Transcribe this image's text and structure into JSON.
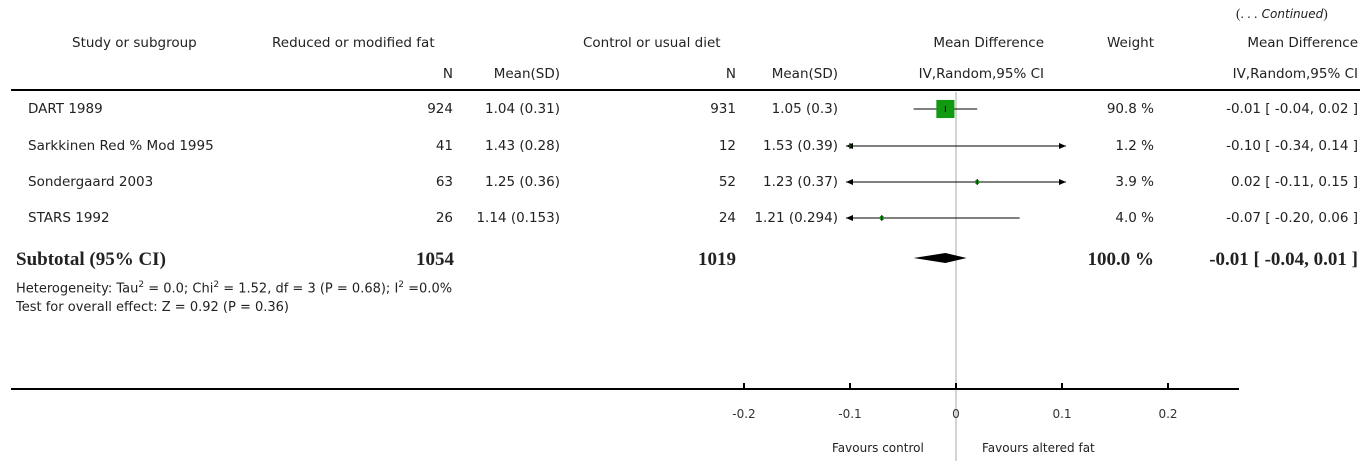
{
  "continued": {
    "prefix": "(. . .",
    "word": "Continued",
    "suffix": ")"
  },
  "headers": {
    "study": "Study or subgroup",
    "treatment": "Reduced or modified fat",
    "control": "Control or usual diet",
    "mean_diff": "Mean Difference",
    "weight": "Weight",
    "mean_diff_right": "Mean Difference",
    "n1": "N",
    "mean1": "Mean(SD)",
    "n2": "N",
    "mean2": "Mean(SD)",
    "method": "IV,Random,95% CI",
    "method_right": "IV,Random,95% CI"
  },
  "rows": [
    {
      "study": "DART 1989",
      "n1": "924",
      "mean1": "1.04 (0.31)",
      "n2": "931",
      "mean2": "1.05 (0.3)",
      "weight": "90.8 %",
      "ci_text": "-0.01 [ -0.04, 0.02 ]"
    },
    {
      "study": "Sarkkinen Red % Mod 1995",
      "n1": "41",
      "mean1": "1.43 (0.28)",
      "n2": "12",
      "mean2": "1.53 (0.39)",
      "weight": "1.2 %",
      "ci_text": "-0.10 [ -0.34, 0.14 ]"
    },
    {
      "study": "Sondergaard 2003",
      "n1": "63",
      "mean1": "1.25 (0.36)",
      "n2": "52",
      "mean2": "1.23 (0.37)",
      "weight": "3.9 %",
      "ci_text": "0.02 [ -0.11, 0.15 ]"
    },
    {
      "study": "STARS 1992",
      "n1": "26",
      "mean1": "1.14 (0.153)",
      "n2": "24",
      "mean2": "1.21 (0.294)",
      "weight": "4.0 %",
      "ci_text": "-0.07 [ -0.20, 0.06 ]"
    }
  ],
  "subtotal": {
    "label": "Subtotal (95% CI)",
    "n1": "1054",
    "n2": "1019",
    "weight": "100.0 %",
    "ci_text": "-0.01 [ -0.04, 0.01 ]"
  },
  "heterogeneity": {
    "prefix": "Heterogeneity: Tau",
    "sup1": "2",
    "mid": " = 0.0; Chi",
    "sup2": "2",
    "mid2": " = 1.52, df = 3 (P = 0.68); I",
    "sup3": "2",
    "suffix": " =0.0%"
  },
  "overall_effect": "Test for overall effect: Z = 0.92 (P = 0.36)",
  "favours": {
    "left": "Favours control",
    "right": "Favours altered fat"
  },
  "chart_data": {
    "type": "forest",
    "xlim": [
      -0.2,
      0.2
    ],
    "ticks": [
      -0.2,
      -0.1,
      0,
      0.1,
      0.2
    ],
    "tick_labels": [
      "-0.2",
      "-0.1",
      "0",
      "0.1",
      "0.2"
    ],
    "studies": [
      {
        "name": "DART 1989",
        "estimate": -0.01,
        "lower": -0.04,
        "upper": 0.02,
        "weight": 90.8
      },
      {
        "name": "Sarkkinen Red % Mod 1995",
        "estimate": -0.1,
        "lower": -0.34,
        "upper": 0.14,
        "weight": 1.2
      },
      {
        "name": "Sondergaard 2003",
        "estimate": 0.02,
        "lower": -0.11,
        "upper": 0.15,
        "weight": 3.9
      },
      {
        "name": "STARS 1992",
        "estimate": -0.07,
        "lower": -0.2,
        "upper": 0.06,
        "weight": 4.0
      }
    ],
    "pooled": {
      "estimate": -0.01,
      "lower": -0.04,
      "upper": 0.01
    },
    "colors": {
      "square": "#119911",
      "line": "#000000",
      "zero_line": "#aaaaaa"
    }
  }
}
